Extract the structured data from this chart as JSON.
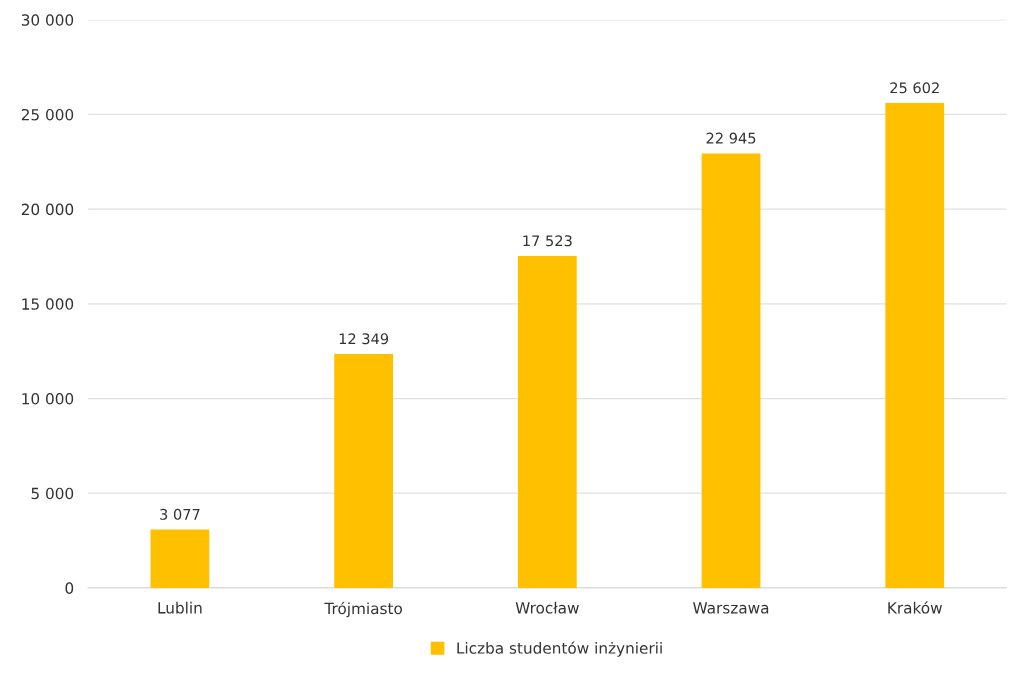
{
  "chart_data": {
    "type": "bar",
    "categories": [
      "Lublin",
      "Trójmiasto",
      "Wrocław",
      "Warszawa",
      "Kraków"
    ],
    "series": [
      {
        "name": "Liczba studentów inżynierii",
        "color": "#ffc000",
        "values": [
          3077,
          12349,
          17523,
          22945,
          25602
        ],
        "value_labels": [
          "3 077",
          "12 349",
          "17 523",
          "22 945",
          "25 602"
        ]
      }
    ],
    "ylim": [
      0,
      30000
    ],
    "yticks": [
      {
        "value": 0,
        "label": "0"
      },
      {
        "value": 5000,
        "label": "5 000"
      },
      {
        "value": 10000,
        "label": "10 000"
      },
      {
        "value": 15000,
        "label": "15 000"
      },
      {
        "value": 20000,
        "label": "20 000"
      },
      {
        "value": 25000,
        "label": "25 000"
      },
      {
        "value": 30000,
        "label": "30 000"
      }
    ],
    "grid": "y",
    "legend": "bottom"
  }
}
